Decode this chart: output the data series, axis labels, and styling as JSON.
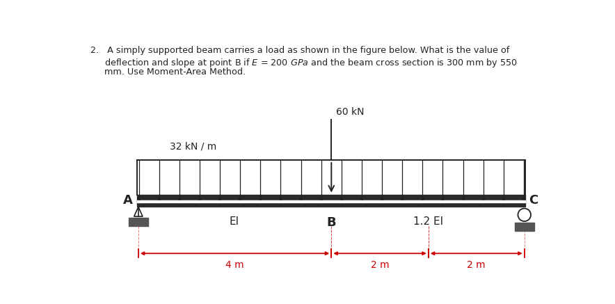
{
  "title_line1": "2.   A simply supported beam carries a load as shown in the figure below. What is the value of",
  "title_line2": "     deflection and slope at point B if $E$ = 200 $GPa$ and the beam cross section is 300 mm by 550",
  "title_line3": "     mm. Use Moment-Area Method.",
  "beam_color": "#2a2a2a",
  "beam_color2": "#555555",
  "background_color": "#ffffff",
  "distributed_load_label": "32 kN / m",
  "point_load_label": "60 kN",
  "label_A": "A",
  "label_B": "B",
  "label_C": "C",
  "label_EI": "EI",
  "label_12EI": "1.2 EI",
  "dim_4m": "4 m",
  "dim_2m_1": "2 m",
  "dim_2m_2": "2 m",
  "arrow_color": "#222222",
  "dim_color": "#cc0000",
  "text_color": "#222222"
}
